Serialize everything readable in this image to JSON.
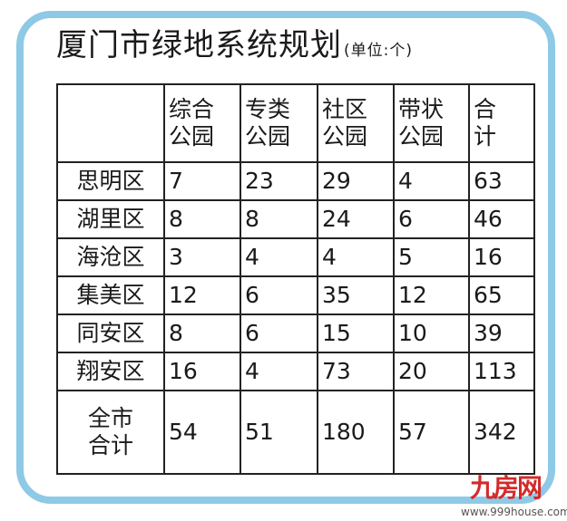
{
  "title": "厦门市绿地系统规划",
  "unit": "(单位:个)",
  "columns": [
    "综合公园",
    "专类公园",
    "社区公园",
    "带状公园",
    "合计"
  ],
  "rows": [
    {
      "district": "思明区",
      "values": [
        "7",
        "23",
        "29",
        "4",
        "63"
      ]
    },
    {
      "district": "湖里区",
      "values": [
        "8",
        "8",
        "24",
        "6",
        "46"
      ]
    },
    {
      "district": "海沧区",
      "values": [
        "3",
        "4",
        "4",
        "5",
        "16"
      ]
    },
    {
      "district": "集美区",
      "values": [
        "12",
        "6",
        "35",
        "12",
        "65"
      ]
    },
    {
      "district": "同安区",
      "values": [
        "8",
        "6",
        "15",
        "10",
        "39"
      ]
    },
    {
      "district": "翔安区",
      "values": [
        "16",
        "4",
        "73",
        "20",
        "113"
      ]
    }
  ],
  "total": {
    "label": "全市合计",
    "values": [
      "54",
      "51",
      "180",
      "57",
      "342"
    ]
  },
  "watermark": {
    "logo": "九房网",
    "url": "www.999house.com"
  },
  "colors": {
    "frame": "#8ec9e6",
    "watermark": "#d42a2a"
  }
}
